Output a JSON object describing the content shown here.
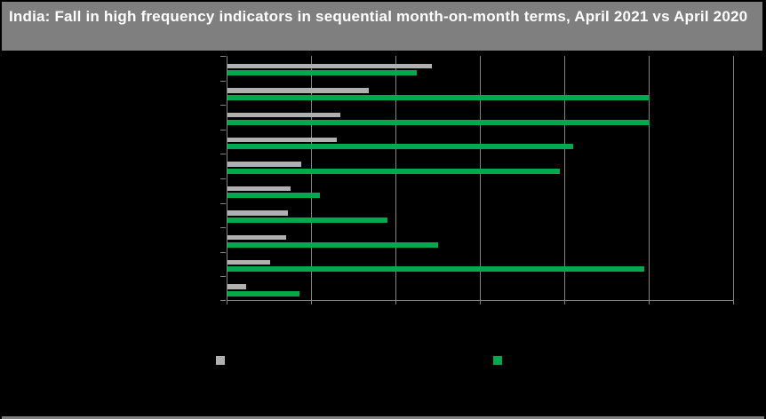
{
  "header": {
    "title": "India: Fall in high frequency indicators in sequential month-on-month terms, April 2021 vs April 2020"
  },
  "colors": {
    "background": "#000000",
    "header_bg": "#7f7f7f",
    "title_text": "#ffffff",
    "gridline": "#828282",
    "gray_series": "#b0b0b0",
    "green_series": "#00a94e"
  },
  "chart_data": {
    "type": "bar",
    "orientation": "horizontal",
    "title": "India: Fall in high frequency indicators in sequential month-on-month terms, April 2021 vs April 2020",
    "categories": [
      "",
      "",
      "",
      "",
      "",
      "",
      "",
      "",
      "",
      ""
    ],
    "category_labels_visible": false,
    "series": [
      {
        "name": "",
        "color": "#b0b0b0",
        "values": [
          2.42,
          1.67,
          1.34,
          1.29,
          0.87,
          0.75,
          0.72,
          0.69,
          0.51,
          0.22
        ]
      },
      {
        "name": "",
        "color": "#00a94e",
        "values": [
          2.24,
          5.0,
          5.0,
          4.09,
          3.94,
          1.09,
          1.89,
          2.49,
          4.94,
          0.85
        ]
      }
    ],
    "x_axis": {
      "range_gridline_units": [
        0,
        6
      ],
      "gridline_count": 7,
      "tick_labels_visible": false
    },
    "legend": {
      "position": "bottom",
      "entries": [
        {
          "color": "#b0b0b0",
          "label": ""
        },
        {
          "color": "#00a94e",
          "label": ""
        }
      ]
    },
    "note": "Axis tick labels, category labels and legend labels are rendered black-on-black (not visible); values are measured in gridline units where one vertical gridline interval = 1."
  }
}
